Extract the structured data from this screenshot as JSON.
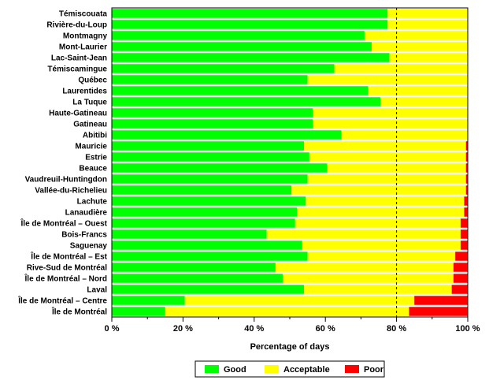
{
  "chart_data": {
    "type": "bar",
    "orientation": "horizontal",
    "stacked": true,
    "categories": [
      "Témiscouata",
      "Rivière-du-Loup",
      "Montmagny",
      "Mont-Laurier",
      "Lac-Saint-Jean",
      "Témiscamingue",
      "Québec",
      "Laurentides",
      "La Tuque",
      "Haute-Gatineau",
      "Gatineau",
      "Abitibi",
      "Mauricie",
      "Estrie",
      "Beauce",
      "Vaudreuil-Huntingdon",
      "Vallée-du-Richelieu",
      "Lachute",
      "Lanaudière",
      "Île de Montréal – Ouest",
      "Bois-Francs",
      "Saguenay",
      "Île de Montréal – Est",
      "Rive-Sud de Montréal",
      "Île de Montréal – Nord",
      "Laval",
      "Île de Montréal – Centre",
      "Île de Montréal"
    ],
    "series": [
      {
        "name": "Good",
        "color": "#00ff00",
        "values": [
          77.5,
          77.5,
          71,
          73,
          78,
          62.5,
          55,
          72,
          75.5,
          56.5,
          56.5,
          64.5,
          54,
          55.5,
          60.5,
          55,
          50.5,
          54.5,
          52,
          51.5,
          43.5,
          53.5,
          55,
          46,
          48,
          54,
          20.5,
          15
        ]
      },
      {
        "name": "Acceptable",
        "color": "#ffff00",
        "values": [
          22.5,
          22.5,
          29,
          27,
          22,
          37.5,
          45,
          28,
          24.5,
          43.5,
          43.5,
          35.5,
          45.5,
          44,
          39,
          44.5,
          49,
          44.5,
          47,
          46.5,
          54.5,
          44.5,
          41.5,
          50,
          48,
          41.5,
          64.5,
          68.5
        ]
      },
      {
        "name": "Poor",
        "color": "#ff0000",
        "values": [
          0,
          0,
          0,
          0,
          0,
          0,
          0,
          0,
          0,
          0,
          0,
          0,
          0.5,
          0.5,
          0.5,
          0.5,
          0.5,
          1,
          1,
          2,
          2,
          2,
          3.5,
          4,
          4,
          4.5,
          15,
          16.5
        ]
      }
    ],
    "xlabel": "Percentage of days",
    "xlim": [
      0,
      100
    ],
    "xticks": [
      0,
      20,
      40,
      60,
      80,
      100
    ],
    "xtick_labels": [
      "0 %",
      "20 %",
      "40 %",
      "60 %",
      "80 %",
      "100 %"
    ],
    "grid": "vertical dashed at 80 %",
    "legend_position": "bottom-center"
  }
}
